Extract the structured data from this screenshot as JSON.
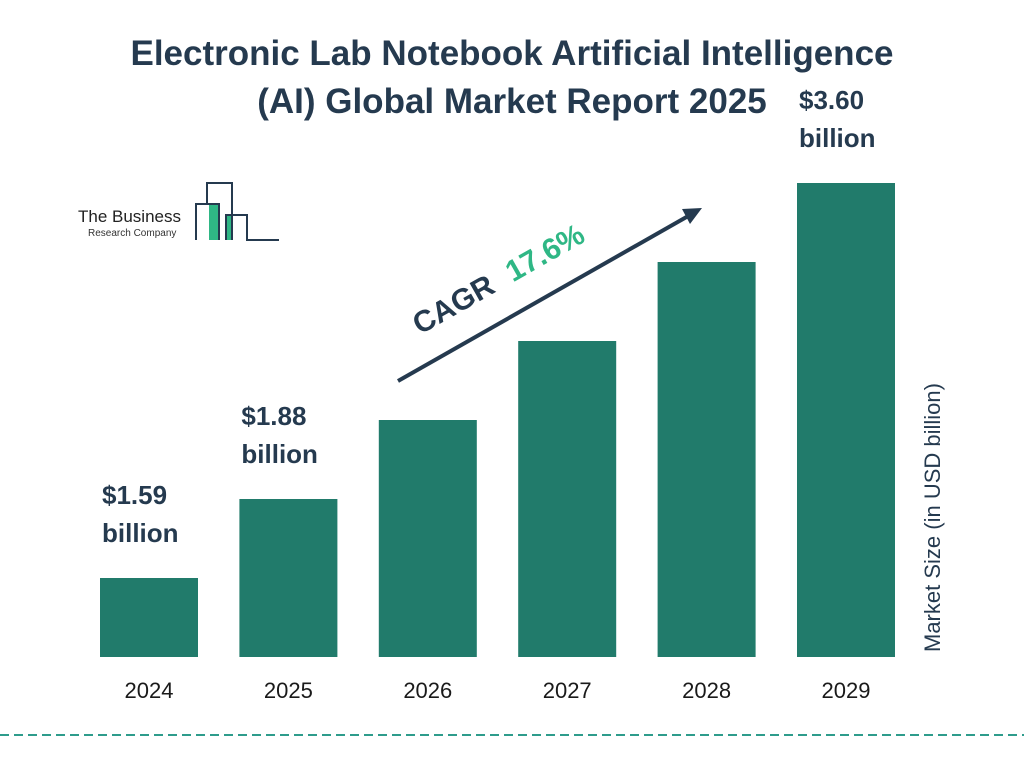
{
  "title_line1": "Electronic Lab Notebook Artificial Intelligence",
  "title_line2": "(AI) Global Market Report 2025",
  "logo": {
    "line1": "The Business",
    "line2": "Research Company"
  },
  "cagr": {
    "label": "CAGR",
    "value": "17.6%"
  },
  "colors": {
    "bar": "#217b6b",
    "title": "#253a4f",
    "cagr_value": "#2fb785",
    "dash": "#2e9c8c"
  },
  "chart_data": {
    "type": "bar",
    "title": "Electronic Lab Notebook Artificial Intelligence (AI) Global Market Report 2025",
    "categories": [
      "2024",
      "2025",
      "2026",
      "2027",
      "2028",
      "2029"
    ],
    "values": [
      1.59,
      1.88,
      2.21,
      2.6,
      3.06,
      3.6
    ],
    "data_labels": [
      {
        "index": 0,
        "line1": "$1.59",
        "line2": "billion"
      },
      {
        "index": 1,
        "line1": "$1.88",
        "line2": "billion"
      },
      {
        "index": 5,
        "line1": "$3.60",
        "line2": "billion"
      }
    ],
    "ylabel": "Market Size (in USD billion)",
    "xlabel": "",
    "grid": false
  }
}
